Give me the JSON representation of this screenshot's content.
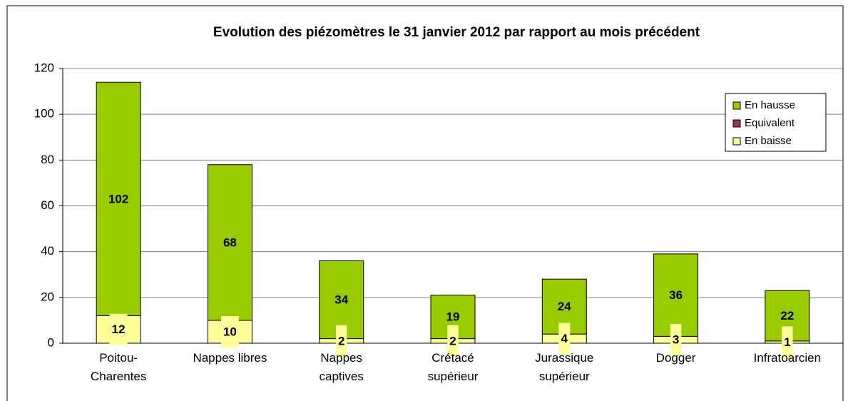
{
  "chart_data": {
    "type": "stacked_bar",
    "title": "Evolution des piézomètres le 31 janvier 2012 par rapport au mois précédent",
    "categories": [
      "Poitou-\nCharentes",
      "Nappes libres",
      "Nappes\ncaptives",
      "Crétacé\nsupérieur",
      "Jurassique\nsupérieur",
      "Dogger",
      "Infratoarcien"
    ],
    "series": [
      {
        "name": "En baisse",
        "color": "#ffff99",
        "values": [
          12,
          10,
          2,
          2,
          4,
          3,
          1
        ]
      },
      {
        "name": "Equivalent",
        "color": "#993366",
        "values": [
          0,
          0,
          0,
          0,
          0,
          0,
          0
        ]
      },
      {
        "name": "En hausse",
        "color": "#99cc00",
        "values": [
          102,
          68,
          34,
          19,
          24,
          36,
          22
        ]
      }
    ],
    "ylim": [
      0,
      120
    ],
    "yticks": [
      0,
      20,
      40,
      60,
      80,
      100,
      120
    ],
    "grid": true,
    "legend": "top-right"
  }
}
